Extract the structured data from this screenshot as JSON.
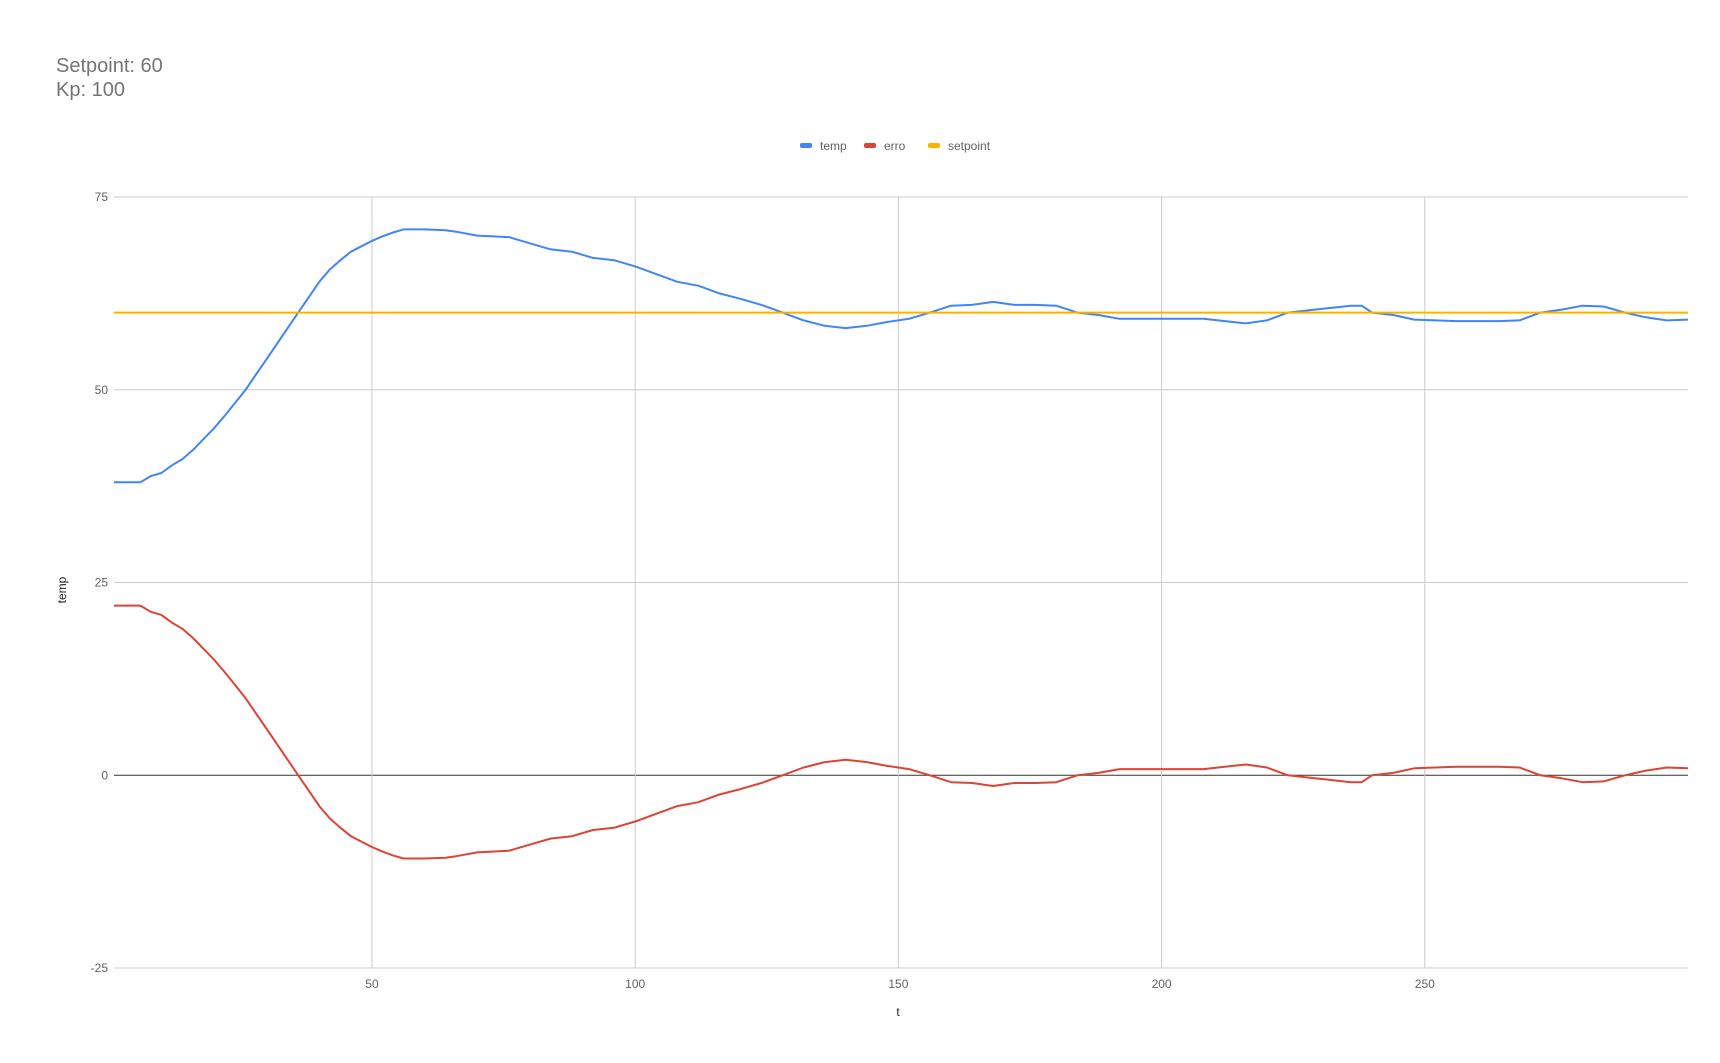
{
  "chart_data": {
    "type": "line",
    "title_lines": [
      "Setpoint: 60",
      "Kp: 100"
    ],
    "xlabel": "t",
    "ylabel": "temp",
    "xlim": [
      1,
      300
    ],
    "ylim": [
      -25,
      75
    ],
    "x_ticks": [
      50,
      100,
      150,
      200,
      250
    ],
    "y_ticks": [
      -25,
      0,
      25,
      50,
      75
    ],
    "grid": true,
    "legend_position": "top",
    "series": [
      {
        "name": "temp",
        "color": "#4285f4",
        "points": [
          [
            1,
            38
          ],
          [
            6,
            38
          ],
          [
            8,
            38.8
          ],
          [
            10,
            39.2
          ],
          [
            12,
            40.2
          ],
          [
            14,
            41
          ],
          [
            16,
            42.2
          ],
          [
            18,
            43.6
          ],
          [
            20,
            45
          ],
          [
            22,
            46.6
          ],
          [
            24,
            48.3
          ],
          [
            26,
            50
          ],
          [
            28,
            52
          ],
          [
            30,
            54
          ],
          [
            32,
            56
          ],
          [
            34,
            58
          ],
          [
            36,
            60
          ],
          [
            38,
            62
          ],
          [
            40,
            64
          ],
          [
            42,
            65.6
          ],
          [
            44,
            66.8
          ],
          [
            46,
            67.9
          ],
          [
            48,
            68.6
          ],
          [
            50,
            69.3
          ],
          [
            52,
            69.9
          ],
          [
            54,
            70.4
          ],
          [
            56,
            70.8
          ],
          [
            60,
            70.8
          ],
          [
            64,
            70.7
          ],
          [
            66,
            70.5
          ],
          [
            70,
            70
          ],
          [
            76,
            69.8
          ],
          [
            80,
            69
          ],
          [
            84,
            68.2
          ],
          [
            88,
            67.9
          ],
          [
            92,
            67.1
          ],
          [
            96,
            66.8
          ],
          [
            100,
            66
          ],
          [
            104,
            65
          ],
          [
            108,
            64
          ],
          [
            112,
            63.5
          ],
          [
            116,
            62.5
          ],
          [
            120,
            61.8
          ],
          [
            124,
            61
          ],
          [
            128,
            60
          ],
          [
            132,
            59
          ],
          [
            136,
            58.3
          ],
          [
            140,
            58
          ],
          [
            144,
            58.3
          ],
          [
            148,
            58.8
          ],
          [
            152,
            59.2
          ],
          [
            156,
            60
          ],
          [
            160,
            60.9
          ],
          [
            164,
            61
          ],
          [
            168,
            61.4
          ],
          [
            172,
            61
          ],
          [
            176,
            61
          ],
          [
            180,
            60.9
          ],
          [
            184,
            60
          ],
          [
            188,
            59.7
          ],
          [
            192,
            59.2
          ],
          [
            200,
            59.2
          ],
          [
            208,
            59.2
          ],
          [
            212,
            58.9
          ],
          [
            216,
            58.6
          ],
          [
            220,
            59
          ],
          [
            224,
            60
          ],
          [
            228,
            60.3
          ],
          [
            232,
            60.6
          ],
          [
            236,
            60.9
          ],
          [
            238,
            60.9
          ],
          [
            240,
            60
          ],
          [
            244,
            59.7
          ],
          [
            248,
            59.1
          ],
          [
            252,
            59
          ],
          [
            256,
            58.9
          ],
          [
            264,
            58.9
          ],
          [
            268,
            59
          ],
          [
            272,
            60
          ],
          [
            276,
            60.4
          ],
          [
            280,
            60.9
          ],
          [
            284,
            60.8
          ],
          [
            288,
            60
          ],
          [
            292,
            59.4
          ],
          [
            296,
            59
          ],
          [
            300,
            59.1
          ]
        ]
      },
      {
        "name": "erro",
        "color": "#db4437",
        "points": [
          [
            1,
            22
          ],
          [
            6,
            22
          ],
          [
            8,
            21.2
          ],
          [
            10,
            20.8
          ],
          [
            12,
            19.8
          ],
          [
            14,
            19
          ],
          [
            16,
            17.8
          ],
          [
            18,
            16.4
          ],
          [
            20,
            15
          ],
          [
            22,
            13.4
          ],
          [
            24,
            11.7
          ],
          [
            26,
            10
          ],
          [
            28,
            8
          ],
          [
            30,
            6
          ],
          [
            32,
            4
          ],
          [
            34,
            2
          ],
          [
            36,
            0
          ],
          [
            38,
            -2
          ],
          [
            40,
            -4
          ],
          [
            42,
            -5.6
          ],
          [
            44,
            -6.8
          ],
          [
            46,
            -7.9
          ],
          [
            48,
            -8.6
          ],
          [
            50,
            -9.3
          ],
          [
            52,
            -9.9
          ],
          [
            54,
            -10.4
          ],
          [
            56,
            -10.8
          ],
          [
            60,
            -10.8
          ],
          [
            64,
            -10.7
          ],
          [
            66,
            -10.5
          ],
          [
            70,
            -10
          ],
          [
            76,
            -9.8
          ],
          [
            80,
            -9
          ],
          [
            84,
            -8.2
          ],
          [
            88,
            -7.9
          ],
          [
            92,
            -7.1
          ],
          [
            96,
            -6.8
          ],
          [
            100,
            -6
          ],
          [
            104,
            -5
          ],
          [
            108,
            -4
          ],
          [
            112,
            -3.5
          ],
          [
            116,
            -2.5
          ],
          [
            120,
            -1.8
          ],
          [
            124,
            -1
          ],
          [
            128,
            0
          ],
          [
            132,
            1
          ],
          [
            136,
            1.7
          ],
          [
            140,
            2
          ],
          [
            144,
            1.7
          ],
          [
            148,
            1.2
          ],
          [
            152,
            0.8
          ],
          [
            156,
            0
          ],
          [
            160,
            -0.9
          ],
          [
            164,
            -1
          ],
          [
            168,
            -1.4
          ],
          [
            172,
            -1
          ],
          [
            176,
            -1
          ],
          [
            180,
            -0.9
          ],
          [
            184,
            0
          ],
          [
            188,
            0.3
          ],
          [
            192,
            0.8
          ],
          [
            200,
            0.8
          ],
          [
            208,
            0.8
          ],
          [
            212,
            1.1
          ],
          [
            216,
            1.4
          ],
          [
            220,
            1
          ],
          [
            224,
            0
          ],
          [
            228,
            -0.3
          ],
          [
            232,
            -0.6
          ],
          [
            236,
            -0.9
          ],
          [
            238,
            -0.9
          ],
          [
            240,
            0
          ],
          [
            244,
            0.3
          ],
          [
            248,
            0.9
          ],
          [
            252,
            1
          ],
          [
            256,
            1.1
          ],
          [
            264,
            1.1
          ],
          [
            268,
            1
          ],
          [
            272,
            0
          ],
          [
            276,
            -0.4
          ],
          [
            280,
            -0.9
          ],
          [
            284,
            -0.8
          ],
          [
            288,
            0
          ],
          [
            292,
            0.6
          ],
          [
            296,
            1
          ],
          [
            300,
            0.9
          ]
        ]
      },
      {
        "name": "setpoint",
        "color": "#f4b400",
        "points": [
          [
            1,
            60
          ],
          [
            300,
            60
          ]
        ]
      }
    ]
  },
  "colors": {
    "grid": "#cccccc",
    "baseline": "#333333"
  }
}
